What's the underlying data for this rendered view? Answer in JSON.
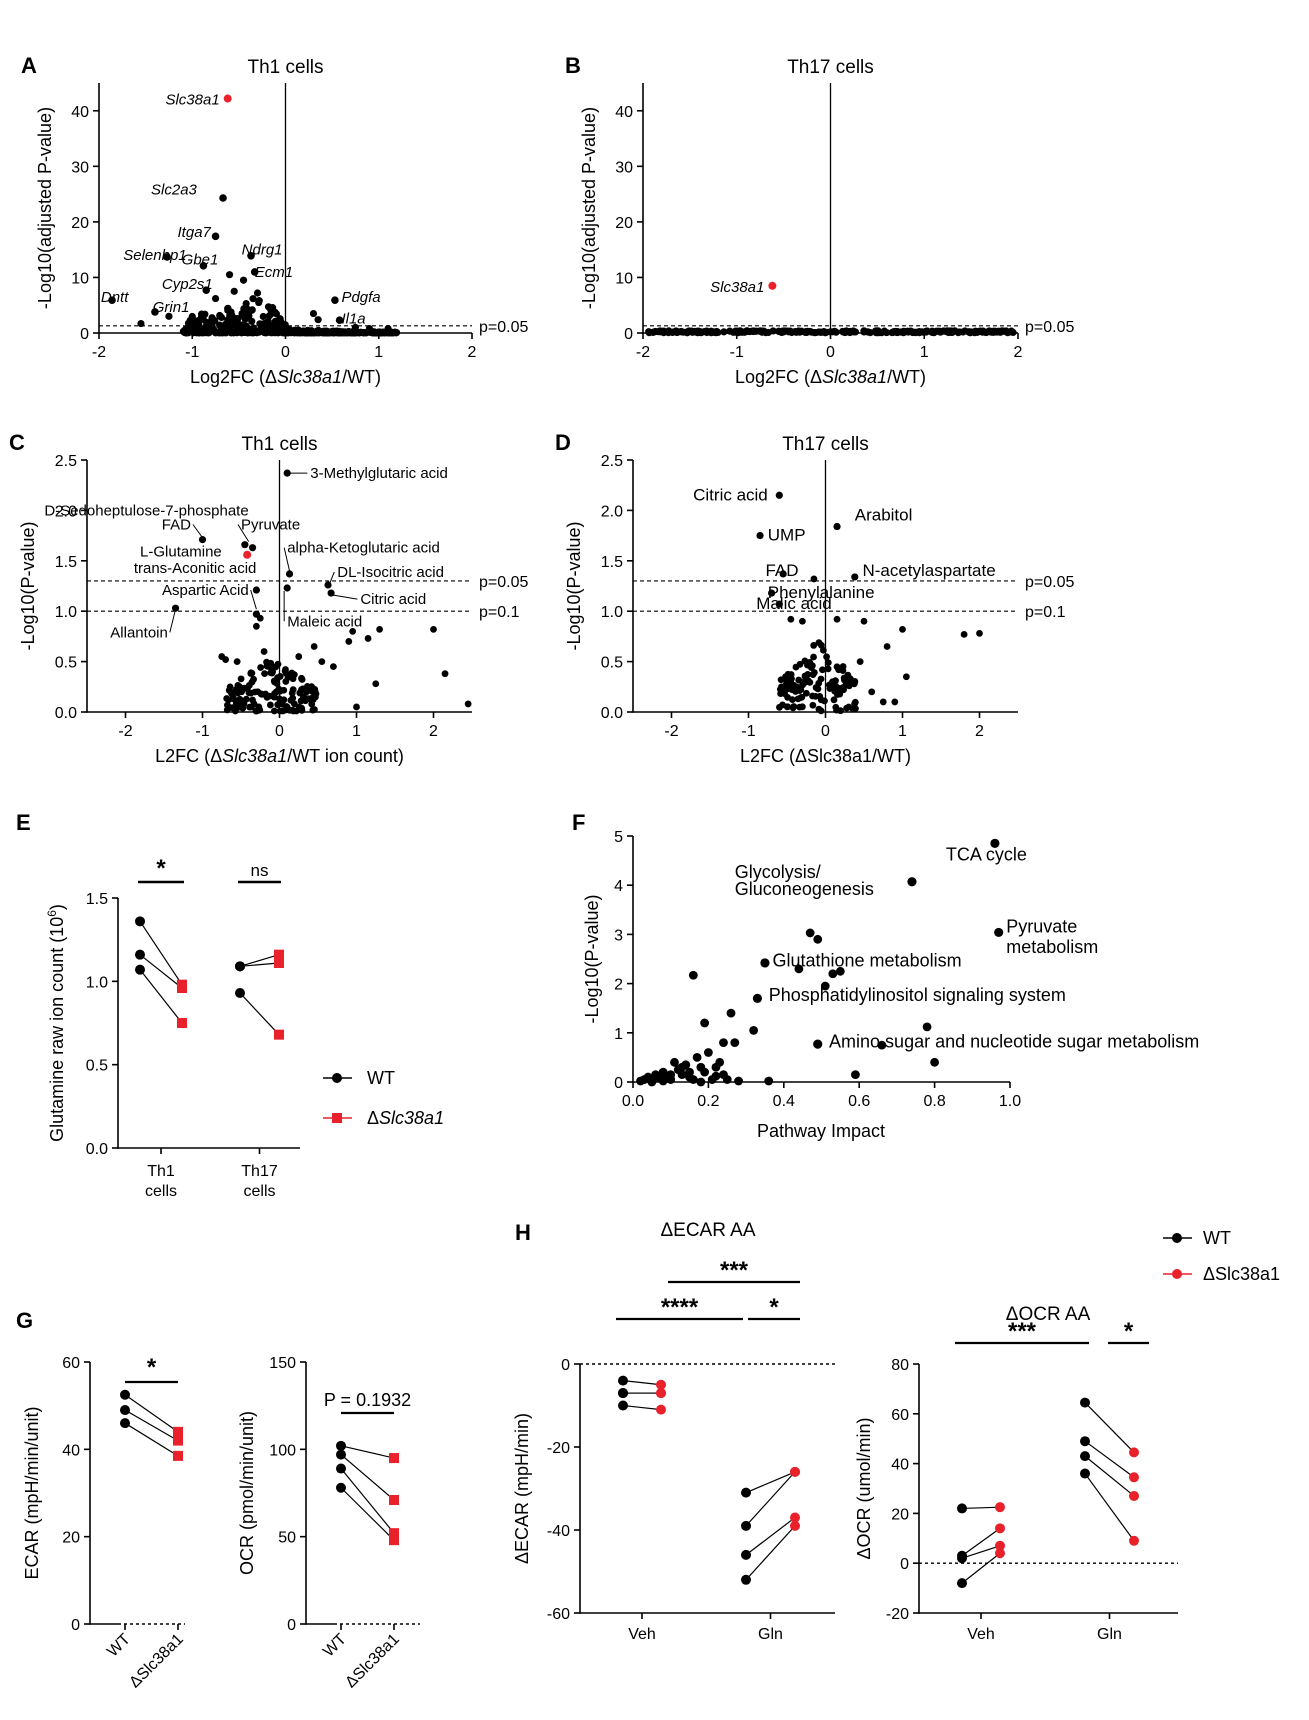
{
  "chart_data": [
    {
      "id": "A",
      "type": "scatter",
      "panel_label": "A",
      "title": "Th1 cells",
      "xlabel_pre": "Log2FC (Δ",
      "xlabel_it": "Slc38a1",
      "xlabel_post": "/WT)",
      "ylabel": "-Log10(adjusted P-value)",
      "xlim": [
        -2,
        2
      ],
      "ylim": [
        0,
        45
      ],
      "xticks": [
        -2,
        -1,
        0,
        1,
        2
      ],
      "yticks": [
        0,
        10,
        20,
        30,
        40
      ],
      "tick_labels_x": [
        "-2",
        "-1",
        "0",
        "1",
        "2"
      ],
      "tick_labels_y": [
        "0",
        "10",
        "20",
        "30",
        "40"
      ],
      "hlines": [
        {
          "y": 1.3,
          "label": "p=0.05"
        }
      ],
      "vline": 0,
      "highlight": [
        {
          "x": -0.62,
          "y": 42.2,
          "label": "Slc38a1",
          "color": "#e8212b"
        }
      ],
      "labeled_points": [
        {
          "x": -0.67,
          "y": 24.3,
          "label": "Slc2a3"
        },
        {
          "x": -0.75,
          "y": 17.4,
          "label": "Itga7"
        },
        {
          "x": -1.27,
          "y": 13.7,
          "label": "Selenbp1"
        },
        {
          "x": -0.88,
          "y": 12.1,
          "label": "Gbe1"
        },
        {
          "x": -0.37,
          "y": 13.9,
          "label": "Ndrg1"
        },
        {
          "x": -0.33,
          "y": 11.0,
          "label": "Ecm1"
        },
        {
          "x": -0.85,
          "y": 7.7,
          "label": "Cyp2s1"
        },
        {
          "x": -1.86,
          "y": 5.9,
          "label": "Dntt"
        },
        {
          "x": -1.4,
          "y": 3.8,
          "label": "Grin1"
        },
        {
          "x": 0.53,
          "y": 5.9,
          "label": "Pdgfa"
        },
        {
          "x": 0.58,
          "y": 2.3,
          "label": "Il1a"
        }
      ]
    },
    {
      "id": "B",
      "type": "scatter",
      "panel_label": "B",
      "title": "Th17 cells",
      "xlabel_pre": "Log2FC (Δ",
      "xlabel_it": "Slc38a1",
      "xlabel_post": "/WT)",
      "ylabel": "-Log10(adjusted P-value)",
      "xlim": [
        -2,
        2
      ],
      "ylim": [
        0,
        45
      ],
      "xticks": [
        -2,
        -1,
        0,
        1,
        2
      ],
      "yticks": [
        0,
        10,
        20,
        30,
        40
      ],
      "tick_labels_x": [
        "-2",
        "-1",
        "0",
        "1",
        "2"
      ],
      "tick_labels_y": [
        "0",
        "10",
        "20",
        "30",
        "40"
      ],
      "hlines": [
        {
          "y": 1.3,
          "label": "p=0.05"
        }
      ],
      "vline": 0,
      "highlight": [
        {
          "x": -0.62,
          "y": 8.5,
          "label": "Slc38a1",
          "color": "#e8212b"
        }
      ],
      "labeled_points": []
    },
    {
      "id": "C",
      "type": "scatter",
      "panel_label": "C",
      "title": "Th1 cells",
      "xlabel_pre": "L2FC (Δ",
      "xlabel_it": "Slc38a1",
      "xlabel_post": "/WT ion count)",
      "ylabel": "-Log10(P-value)",
      "xlim": [
        -2.5,
        2.5
      ],
      "ylim": [
        0,
        2.5
      ],
      "xticks": [
        -2,
        -1,
        0,
        1,
        2
      ],
      "yticks": [
        0,
        0.5,
        1.0,
        1.5,
        2.0,
        2.5
      ],
      "tick_labels_x": [
        "-2",
        "-1",
        "0",
        "1",
        "2"
      ],
      "tick_labels_y": [
        "0.0",
        "0.5",
        "1.0",
        "1.5",
        "2.0",
        "2.5"
      ],
      "hlines": [
        {
          "y": 1.3,
          "label": "p=0.05"
        },
        {
          "y": 1.0,
          "label": "p=0.1"
        }
      ],
      "vline": 0,
      "highlight": [
        {
          "x": -0.42,
          "y": 1.56,
          "label": "L-Glutamine",
          "color": "#e8212b"
        }
      ],
      "labeled_points": [
        {
          "x": 0.1,
          "y": 2.37,
          "label": "3-Methylglutaric acid"
        },
        {
          "x": -0.45,
          "y": 1.66,
          "label": "D-Sedoheptulose-7-phosphate"
        },
        {
          "x": -0.35,
          "y": 1.63,
          "label": "Pyruvate"
        },
        {
          "x": -1.0,
          "y": 1.71,
          "label": "FAD"
        },
        {
          "x": 0.13,
          "y": 1.37,
          "label": "alpha-Ketoglutaric acid"
        },
        {
          "x": -0.3,
          "y": 1.21,
          "label": "trans-Aconitic acid"
        },
        {
          "x": 0.63,
          "y": 1.26,
          "label": "DL-Isocitric acid"
        },
        {
          "x": 0.67,
          "y": 1.18,
          "label": "Citric acid"
        },
        {
          "x": -0.3,
          "y": 0.97,
          "label": "Aspartic Acid"
        },
        {
          "x": 0.1,
          "y": 1.23,
          "label": "Maleic acid"
        },
        {
          "x": -1.35,
          "y": 1.03,
          "label": "Allantoin"
        }
      ]
    },
    {
      "id": "D",
      "type": "scatter",
      "panel_label": "D",
      "title": "Th17 cells",
      "xlabel_pre": "L2FC (ΔSlc38a1/WT)",
      "xlabel_it": "",
      "xlabel_post": "",
      "ylabel": "-Log10(P-value)",
      "xlim": [
        -2.5,
        2.5
      ],
      "ylim": [
        0,
        2.5
      ],
      "xticks": [
        -2,
        -1,
        0,
        1,
        2
      ],
      "yticks": [
        0,
        0.5,
        1.0,
        1.5,
        2.0,
        2.5
      ],
      "tick_labels_x": [
        "-2",
        "-1",
        "0",
        "1",
        "2"
      ],
      "tick_labels_y": [
        "0.0",
        "0.5",
        "1.0",
        "1.5",
        "2.0",
        "2.5"
      ],
      "hlines": [
        {
          "y": 1.3,
          "label": "p=0.05"
        },
        {
          "y": 1.0,
          "label": "p=0.1"
        }
      ],
      "vline": 0,
      "highlight": [],
      "labeled_points": [
        {
          "x": -0.6,
          "y": 2.15,
          "label": "Citric acid"
        },
        {
          "x": 0.15,
          "y": 1.84,
          "label": "Arabitol"
        },
        {
          "x": -0.85,
          "y": 1.75,
          "label": "UMP"
        },
        {
          "x": -0.55,
          "y": 1.37,
          "label": "FAD"
        },
        {
          "x": 0.38,
          "y": 1.34,
          "label": "N-acetylaspartate"
        },
        {
          "x": -0.7,
          "y": 1.18,
          "label": "Phenylalanine"
        },
        {
          "x": -0.6,
          "y": 1.07,
          "label": "Malic acid"
        }
      ]
    },
    {
      "id": "E",
      "type": "paired-scatter",
      "panel_label": "E",
      "ylabel": "Glutamine raw ion count (10",
      "ylabel_sup": "6",
      "ylabel_close": ")",
      "ylim": [
        0,
        1.5
      ],
      "yticks": [
        0,
        0.5,
        1.0,
        1.5
      ],
      "tick_labels_y": [
        "0.0",
        "0.5",
        "1.0",
        "1.5"
      ],
      "groups": [
        {
          "label1": "Th1",
          "label2": "cells",
          "wt": [
            1.36,
            1.16,
            1.07
          ],
          "ko": [
            0.98,
            0.96,
            0.75
          ],
          "sig": "*"
        },
        {
          "label1": "Th17",
          "label2": "cells",
          "wt": [
            1.09,
            1.09,
            0.93
          ],
          "ko": [
            1.16,
            1.11,
            0.68
          ],
          "sig": "ns"
        }
      ],
      "legend": [
        {
          "label": "WT",
          "color": "#000000"
        },
        {
          "label": "Slc38a1",
          "prefix": "Δ",
          "color": "#e8212b"
        }
      ]
    },
    {
      "id": "F",
      "type": "scatter",
      "panel_label": "F",
      "xlabel": "Pathway Impact",
      "ylabel": "-Log10(P-value)",
      "xlim": [
        0,
        1.0
      ],
      "ylim": [
        0,
        5
      ],
      "xticks": [
        0,
        0.2,
        0.4,
        0.6,
        0.8,
        1.0
      ],
      "yticks": [
        0,
        1,
        2,
        3,
        4,
        5
      ],
      "tick_labels_x": [
        "0.0",
        "0.2",
        "0.4",
        "0.6",
        "0.8",
        "1.0"
      ],
      "tick_labels_y": [
        "0",
        "1",
        "2",
        "3",
        "4",
        "5"
      ],
      "labeled_points": [
        {
          "x": 0.96,
          "y": 4.85,
          "label": "TCA cycle"
        },
        {
          "x": 0.74,
          "y": 4.07,
          "label": "Glycolysis/ Gluconeogenesis"
        },
        {
          "x": 0.97,
          "y": 3.04,
          "label": "Pyruvate metabolism"
        },
        {
          "x": 0.35,
          "y": 2.42,
          "label": "Glutathione metabolism"
        },
        {
          "x": 0.33,
          "y": 1.7,
          "label": "Phosphatidylinositol signaling system"
        },
        {
          "x": 0.49,
          "y": 0.77,
          "label": "Amino sugar and nucleotide sugar metabolism"
        }
      ]
    },
    {
      "id": "G1",
      "type": "paired-scatter",
      "panel_label": "G",
      "ylabel": "ECAR (mpH/min/unit)",
      "ylim": [
        0,
        60
      ],
      "yticks": [
        0,
        20,
        40,
        60
      ],
      "tick_labels_y": [
        "0",
        "20",
        "40",
        "60"
      ],
      "categories": [
        "WT",
        "ΔSlc38a1"
      ],
      "wt": [
        52.5,
        49,
        46
      ],
      "ko": [
        44,
        42,
        38.5
      ],
      "sig": "*"
    },
    {
      "id": "G2",
      "type": "paired-scatter",
      "ylabel": "OCR (pmol/min/unit)",
      "ylim": [
        0,
        150
      ],
      "yticks": [
        0,
        50,
        100,
        150
      ],
      "tick_labels_y": [
        "0",
        "50",
        "100",
        "150"
      ],
      "categories": [
        "WT",
        "ΔSlc38a1"
      ],
      "wt": [
        102,
        97,
        89,
        78
      ],
      "ko": [
        95,
        71,
        52,
        48
      ],
      "sig": "P = 0.1932"
    },
    {
      "id": "H1",
      "type": "paired-scatter",
      "panel_label": "H",
      "title": "ΔECAR AA",
      "ylabel": "ΔECAR (mpH/min)",
      "ylim": [
        -60,
        0
      ],
      "yticks": [
        -60,
        -40,
        -20,
        0
      ],
      "tick_labels_y": [
        "-60",
        "-40",
        "-20",
        "0"
      ],
      "categories": [
        "Veh",
        "Gln"
      ],
      "veh_wt": [
        -4,
        -7,
        -7,
        -10
      ],
      "veh_ko": [
        -5,
        -7,
        -7,
        -11
      ],
      "gln_wt": [
        -31,
        -39,
        -46,
        -52
      ],
      "gln_ko": [
        -26,
        -26,
        -37,
        -39
      ],
      "sigs": [
        "***",
        "****",
        "*"
      ]
    },
    {
      "id": "H2",
      "type": "paired-scatter",
      "title": "ΔOCR AA",
      "ylabel": "ΔOCR (umol/min)",
      "ylim": [
        -20,
        80
      ],
      "yticks": [
        -20,
        0,
        20,
        40,
        60,
        80
      ],
      "tick_labels_y": [
        "-20",
        "0",
        "20",
        "40",
        "60",
        "80"
      ],
      "categories": [
        "Veh",
        "Gln"
      ],
      "veh_wt": [
        22,
        3,
        2,
        -8
      ],
      "veh_ko": [
        22.5,
        14,
        7,
        4
      ],
      "gln_wt": [
        64.5,
        49,
        43,
        36
      ],
      "gln_ko": [
        44.5,
        34.5,
        27,
        9
      ],
      "sigs": [
        "***",
        "*"
      ],
      "legend": [
        {
          "label": "WT",
          "color": "#000000"
        },
        {
          "label": "ΔSlc38a1",
          "color": "#e8212b"
        }
      ]
    }
  ]
}
